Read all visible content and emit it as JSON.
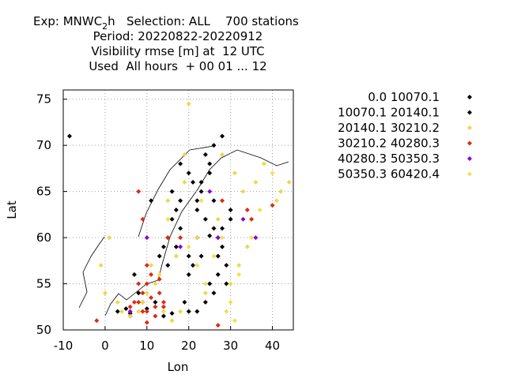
{
  "chart_data": {
    "type": "scatter",
    "title": [
      "Exp: MNWC",
      "2",
      "h   Selection: ALL    700 stations"
    ],
    "subtitle": [
      "Period: 20220822-20220912",
      "Visibility rmse [m] at  12 UTC",
      "Used  All hours  + 00 01 ... 12"
    ],
    "x_label": "Lon",
    "y_label": "Lat",
    "xlim": [
      -10,
      45
    ],
    "ylim": [
      50,
      76
    ],
    "xticks": [
      -10,
      0,
      10,
      20,
      30,
      40
    ],
    "yticks": [
      50,
      55,
      60,
      65,
      70,
      75
    ],
    "grid": true,
    "legend_position": "outside-right",
    "series": [
      {
        "name": "0.0 10070.1",
        "color": "#000000",
        "x": [
          25,
          26,
          24,
          27,
          28,
          22,
          23,
          21,
          20,
          18,
          17,
          16,
          15,
          14,
          25,
          27,
          29,
          26,
          24,
          22,
          20,
          19,
          12,
          14,
          16,
          10,
          8,
          6,
          5,
          7,
          24,
          26,
          28,
          25,
          23,
          22,
          18,
          17,
          15,
          13,
          -8.5,
          20,
          22,
          30,
          29
        ],
        "values": [
          60.2,
          61,
          62,
          58,
          59,
          64,
          65,
          66,
          67,
          68,
          63,
          62,
          60,
          59,
          55,
          56,
          57,
          54,
          53,
          52,
          52,
          53,
          53,
          51.5,
          51.8,
          52.3,
          54,
          51.8,
          52.3,
          56,
          69,
          70,
          71,
          68,
          66,
          63,
          61,
          59,
          57,
          58,
          71,
          58,
          60,
          63,
          55
        ]
      },
      {
        "name": "10070.1 20140.1",
        "color": "#000000",
        "x": [
          20,
          21,
          23,
          27,
          28,
          30,
          18,
          16,
          11,
          9,
          3,
          6,
          25,
          26
        ],
        "values": [
          56,
          57,
          58,
          60,
          61,
          62,
          64,
          65,
          64,
          53,
          52,
          51.5,
          67,
          64
        ]
      },
      {
        "name": "20140.1 30210.2",
        "color": "#ecd84a",
        "x": [
          12,
          13,
          10,
          8,
          6,
          4,
          9,
          11,
          14,
          16,
          18,
          30,
          32,
          34,
          35,
          33,
          31,
          20,
          19,
          15,
          3,
          0,
          -1,
          1,
          19,
          36,
          38,
          41,
          42,
          44,
          28,
          27,
          24,
          22,
          17
        ],
        "values": [
          55,
          56,
          54,
          52,
          51.5,
          52,
          53,
          57,
          52,
          51,
          52,
          55,
          57,
          59,
          62,
          65,
          67,
          74.5,
          66,
          64,
          53,
          54,
          57,
          60,
          69,
          66,
          68,
          64,
          65,
          66,
          69,
          62,
          54,
          60,
          58
        ]
      },
      {
        "name": "30210.2 40280.3",
        "color": "#e02a12",
        "x": [
          8,
          9,
          10,
          11,
          12,
          13,
          10,
          12,
          14,
          7,
          6,
          11,
          8,
          13,
          9,
          14,
          10,
          18,
          9,
          28,
          34,
          40,
          -2,
          15,
          8,
          10,
          27,
          35
        ],
        "values": [
          53,
          54,
          55,
          53.5,
          52.5,
          54,
          52,
          51.5,
          53,
          53,
          52.5,
          56,
          55,
          55.5,
          52,
          52.5,
          57,
          60,
          62,
          64,
          63,
          63.5,
          51,
          60,
          65,
          50.8,
          50.5,
          62
        ]
      },
      {
        "name": "40280.3 50350.3",
        "color": "#8a00d4",
        "x": [
          10,
          25,
          33,
          18,
          6,
          36,
          27
        ],
        "values": [
          60,
          65,
          62,
          59,
          52,
          60,
          60
        ]
      },
      {
        "name": "50350.3 60420.4",
        "color": "#f2e050",
        "x": [
          30,
          32,
          26,
          28,
          24,
          22,
          20,
          15,
          13,
          23,
          29,
          31,
          35,
          37,
          40
        ],
        "values": [
          53,
          56,
          58,
          60,
          55,
          57,
          59,
          62,
          56,
          64,
          52,
          51,
          60,
          63,
          67
        ]
      }
    ]
  }
}
